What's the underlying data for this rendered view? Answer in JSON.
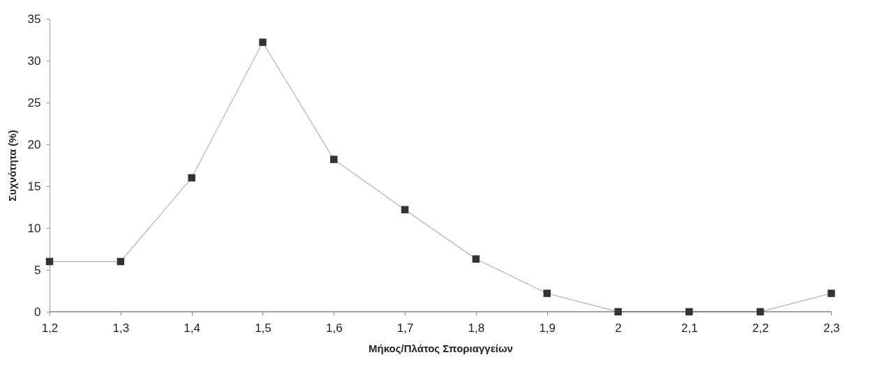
{
  "chart_data": {
    "type": "line",
    "xlabel": "Μήκος/Πλάτος Σποριαγγείων",
    "ylabel": "Συχνότητα (%)",
    "categories": [
      "1,2",
      "1,3",
      "1,4",
      "1,5",
      "1,6",
      "1,7",
      "1,8",
      "1,9",
      "2",
      "2,1",
      "2,2",
      "2,3"
    ],
    "series": [
      {
        "color": "#333333",
        "values": [
          6,
          6,
          16,
          32.2,
          18.2,
          12.2,
          6.3,
          2.2,
          0,
          0,
          0,
          2.2
        ]
      }
    ],
    "ylim": [
      0,
      35
    ],
    "yticks": [
      0,
      5,
      10,
      15,
      20,
      25,
      30,
      35
    ],
    "grid": false,
    "legend": false,
    "marker": "square",
    "line_style": "solid"
  }
}
